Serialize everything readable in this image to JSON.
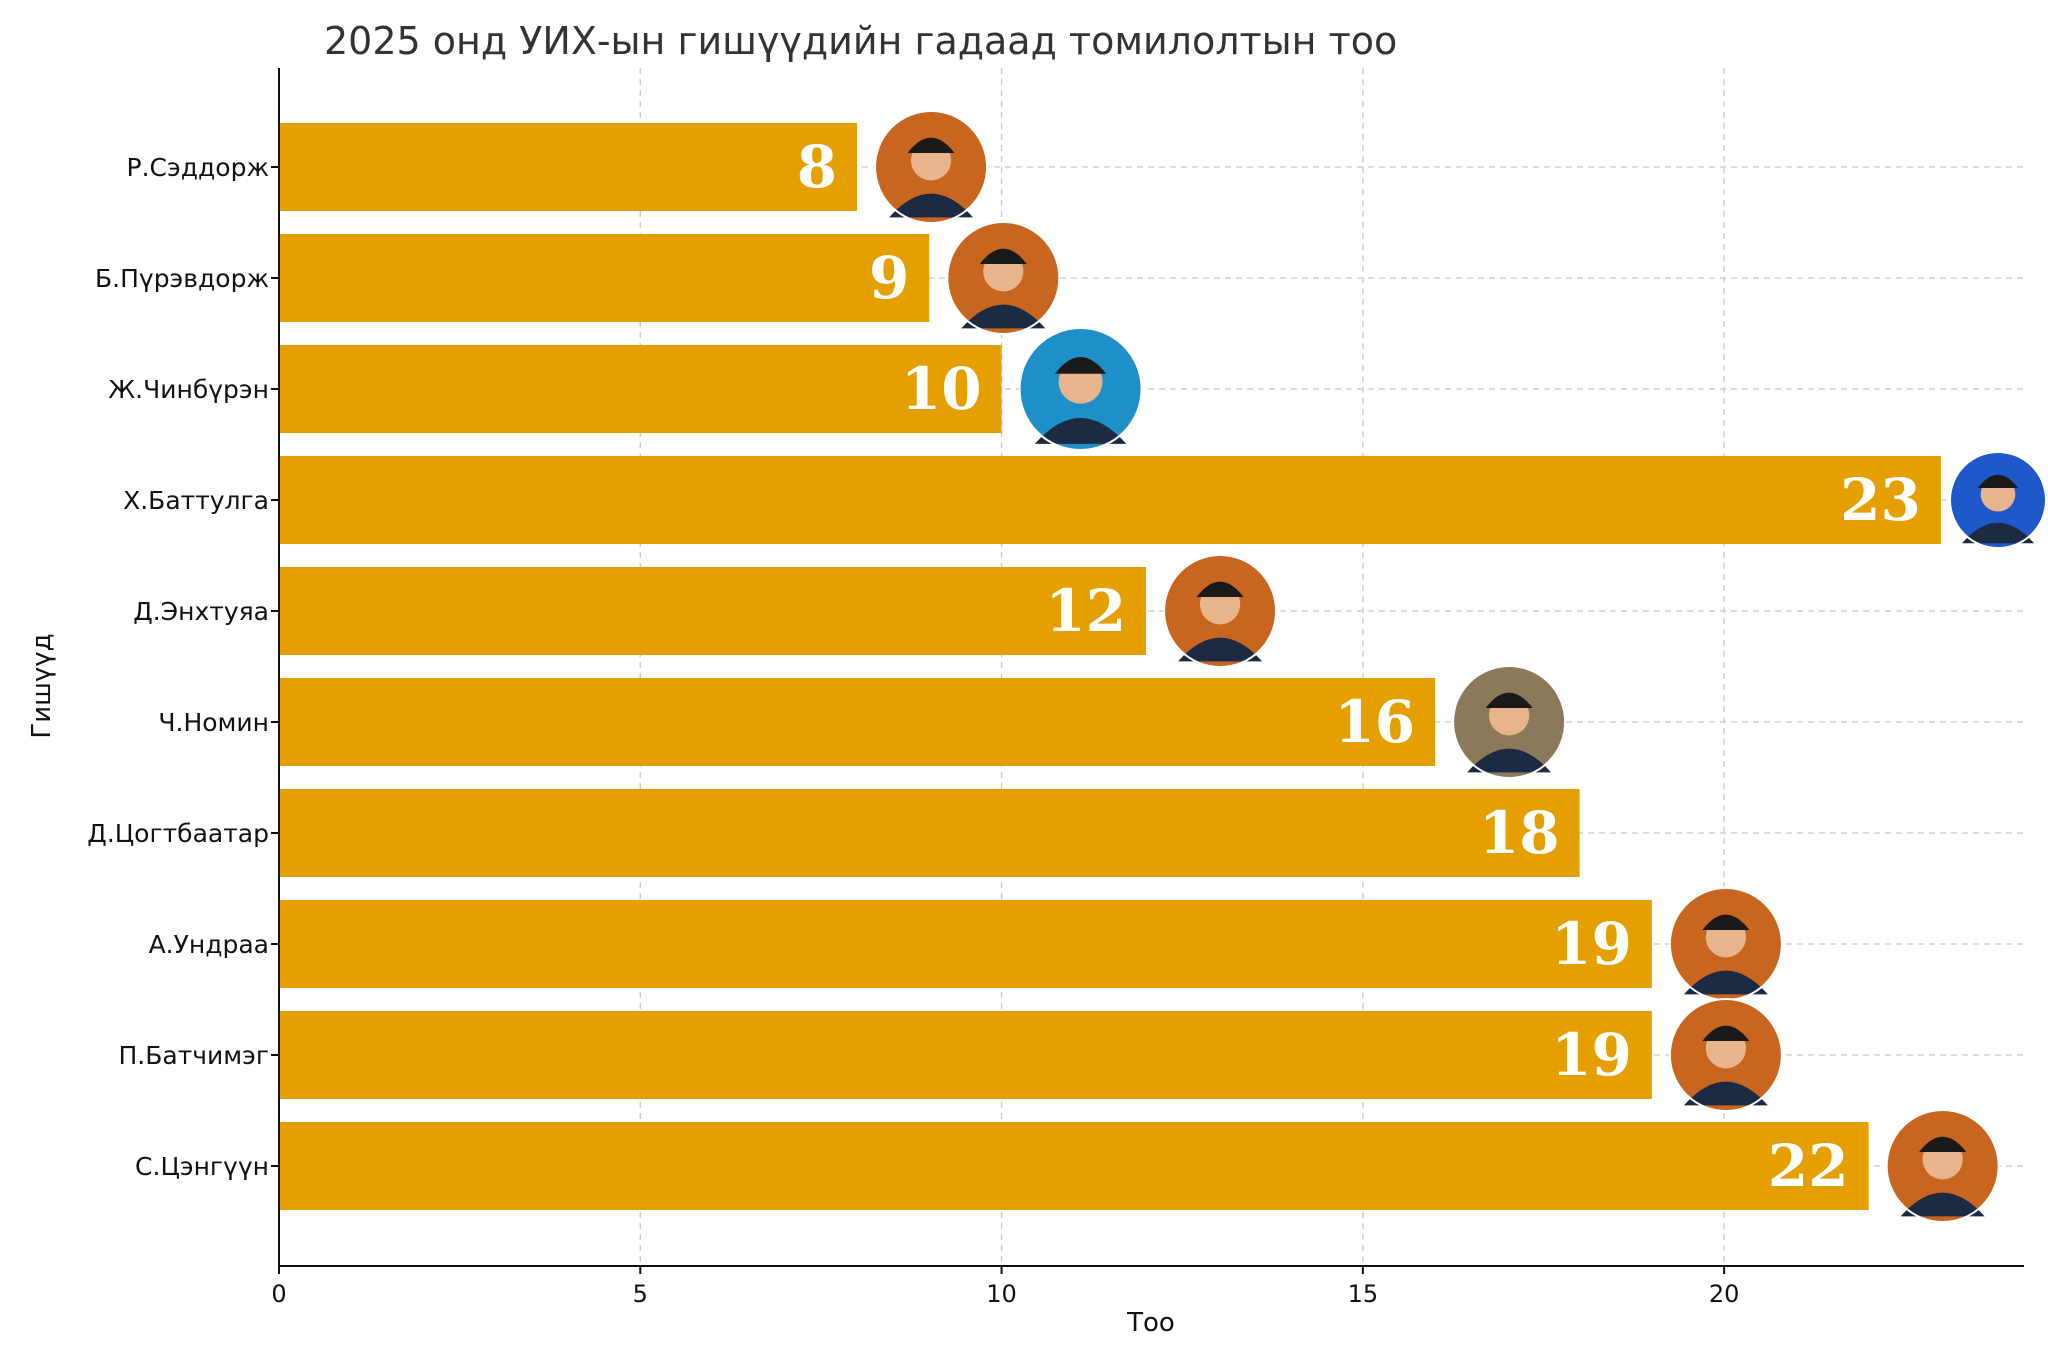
{
  "chart_data": {
    "type": "bar",
    "orientation": "horizontal",
    "title": "2025 онд УИХ-ын гишүүдийн гадаад томилолтын тоо",
    "xlabel": "Тоо",
    "ylabel": "Гишүүд",
    "xlim": [
      0,
      24.15
    ],
    "xticks": [
      0,
      5,
      10,
      15,
      20
    ],
    "grid": true,
    "bar_color": "#E5A000",
    "categories": [
      "Р.Сэддорж",
      "Б.Пүрэвдорж",
      "Ж.Чинбүрэн",
      "Х.Баттулга",
      "Д.Энхтуяа",
      "Ч.Номин",
      "Д.Цогтбаатар",
      "А.Ундраа",
      "П.Батчимэг",
      "С.Цэнгүүн"
    ],
    "values": [
      8,
      9,
      10,
      23,
      12,
      16,
      18,
      19,
      19,
      22
    ],
    "portraits": [
      {
        "icon": "portrait-man-icon",
        "tone": "#c8651f"
      },
      {
        "icon": "portrait-man-icon",
        "tone": "#c8651f"
      },
      {
        "icon": "portrait-man-icon",
        "tone": "#1f8fc8"
      },
      {
        "icon": "portrait-man-icon",
        "tone": "#1f58c8"
      },
      {
        "icon": "portrait-woman-icon",
        "tone": "#c8651f"
      },
      {
        "icon": "portrait-woman-icon",
        "tone": "#8a7a5a"
      },
      null,
      {
        "icon": "portrait-woman-icon",
        "tone": "#c8651f"
      },
      {
        "icon": "portrait-woman-icon",
        "tone": "#c8651f"
      },
      {
        "icon": "portrait-woman-icon",
        "tone": "#c8651f"
      }
    ]
  }
}
